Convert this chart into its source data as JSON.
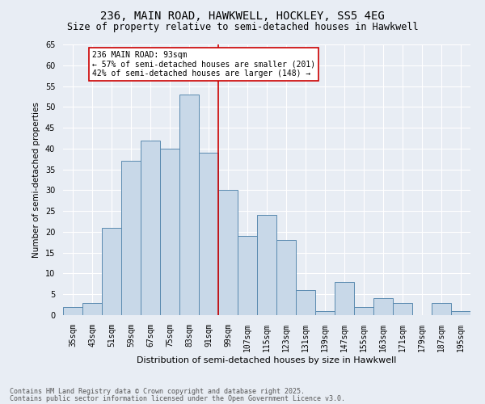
{
  "title_line1": "236, MAIN ROAD, HAWKWELL, HOCKLEY, SS5 4EG",
  "title_line2": "Size of property relative to semi-detached houses in Hawkwell",
  "xlabel": "Distribution of semi-detached houses by size in Hawkwell",
  "ylabel": "Number of semi-detached properties",
  "categories": [
    "35sqm",
    "43sqm",
    "51sqm",
    "59sqm",
    "67sqm",
    "75sqm",
    "83sqm",
    "91sqm",
    "99sqm",
    "107sqm",
    "115sqm",
    "123sqm",
    "131sqm",
    "139sqm",
    "147sqm",
    "155sqm",
    "163sqm",
    "171sqm",
    "179sqm",
    "187sqm",
    "195sqm"
  ],
  "values": [
    2,
    3,
    21,
    37,
    42,
    40,
    53,
    39,
    30,
    19,
    24,
    18,
    6,
    1,
    8,
    2,
    4,
    3,
    0,
    3,
    1
  ],
  "bar_color": "#c8d8e8",
  "bar_edge_color": "#5a8ab0",
  "vline_color": "#cc0000",
  "annotation_text": "236 MAIN ROAD: 93sqm\n← 57% of semi-detached houses are smaller (201)\n42% of semi-detached houses are larger (148) →",
  "annotation_box_color": "#ffffff",
  "annotation_box_edge": "#cc0000",
  "ylim": [
    0,
    65
  ],
  "yticks": [
    0,
    5,
    10,
    15,
    20,
    25,
    30,
    35,
    40,
    45,
    50,
    55,
    60,
    65
  ],
  "background_color": "#e8edf4",
  "grid_color": "#ffffff",
  "footer_line1": "Contains HM Land Registry data © Crown copyright and database right 2025.",
  "footer_line2": "Contains public sector information licensed under the Open Government Licence v3.0.",
  "title_fontsize": 10,
  "subtitle_fontsize": 8.5,
  "axis_label_fontsize": 7.5,
  "tick_fontsize": 7,
  "annotation_fontsize": 7,
  "footer_fontsize": 6
}
